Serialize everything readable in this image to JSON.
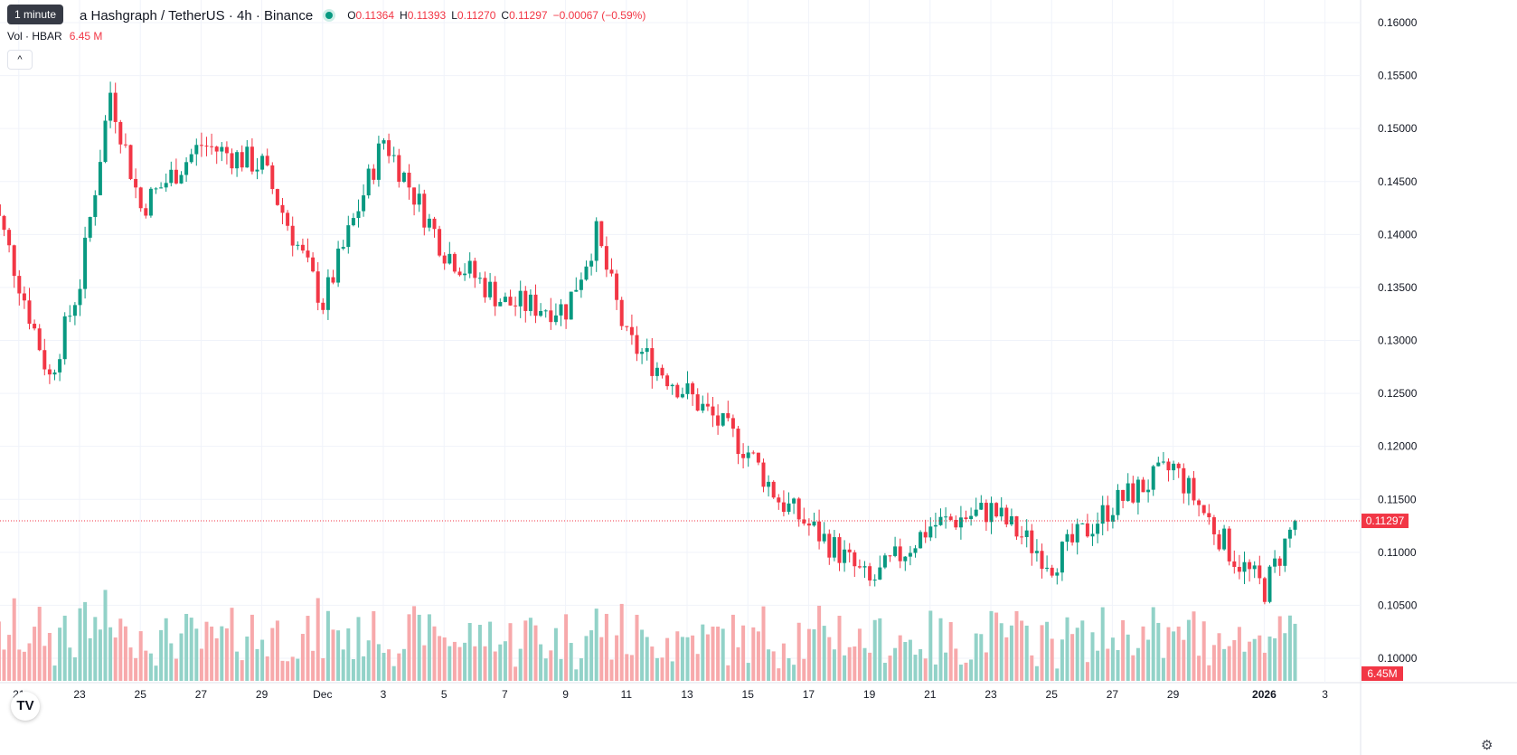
{
  "header": {
    "symbol": "a Hashgraph / TetherUS · 4h · Binance",
    "open_label": "O",
    "open": "0.11364",
    "high_label": "H",
    "high": "0.11393",
    "low_label": "L",
    "low": "0.11270",
    "close_label": "C",
    "close": "0.11297",
    "change": "−0.00067 (−0.59%)"
  },
  "tooltip": "1 minute",
  "volume_legend": {
    "label": "Vol · HBAR",
    "value": "6.45 M"
  },
  "collapse_glyph": "^",
  "logo": "TV",
  "settings_icon": "gear-icon",
  "colors": {
    "up": "#089981",
    "down": "#f23645",
    "vol_up": "#92d2c8",
    "vol_down": "#f7a9ab",
    "grid": "#f0f3fa"
  },
  "chart_data": {
    "type": "candlestick",
    "title": "a Hashgraph / TetherUS · 4h · Binance",
    "ylim": [
      0.0955,
      0.1625
    ],
    "y_ticks": [
      "0.16000",
      "0.15500",
      "0.15000",
      "0.14500",
      "0.14000",
      "0.13500",
      "0.13000",
      "0.12500",
      "0.12000",
      "0.11500",
      "0.11000",
      "0.10500",
      "0.10000"
    ],
    "x_ticks": [
      "21",
      "23",
      "25",
      "27",
      "29",
      "Dec",
      "3",
      "5",
      "7",
      "9",
      "11",
      "13",
      "15",
      "17",
      "19",
      "21",
      "23",
      "25",
      "27",
      "29",
      "2026",
      "3"
    ],
    "last_price": "0.11297",
    "last_volume": "6.45M",
    "grid": true,
    "key_points": [
      {
        "date": "Nov 20",
        "close": 0.1445
      },
      {
        "date": "Nov 22",
        "close": 0.1265
      },
      {
        "date": "Nov 23",
        "close": 0.1355
      },
      {
        "date": "Nov 24",
        "close": 0.1535
      },
      {
        "date": "Nov 25",
        "close": 0.1425
      },
      {
        "date": "Nov 27",
        "close": 0.1485
      },
      {
        "date": "Nov 29",
        "close": 0.1465
      },
      {
        "date": "Dec 1",
        "close": 0.1335
      },
      {
        "date": "Dec 3",
        "close": 0.149
      },
      {
        "date": "Dec 5",
        "close": 0.1385
      },
      {
        "date": "Dec 7",
        "close": 0.1335
      },
      {
        "date": "Dec 9",
        "close": 0.133
      },
      {
        "date": "Dec 10",
        "close": 0.14
      },
      {
        "date": "Dec 11",
        "close": 0.13
      },
      {
        "date": "Dec 13",
        "close": 0.125
      },
      {
        "date": "Dec 15",
        "close": 0.1195
      },
      {
        "date": "Dec 16",
        "close": 0.115
      },
      {
        "date": "Dec 18",
        "close": 0.11
      },
      {
        "date": "Dec 19",
        "close": 0.107
      },
      {
        "date": "Dec 21",
        "close": 0.1125
      },
      {
        "date": "Dec 23",
        "close": 0.114
      },
      {
        "date": "Dec 25",
        "close": 0.109
      },
      {
        "date": "Dec 27",
        "close": 0.1145
      },
      {
        "date": "Dec 29",
        "close": 0.118
      },
      {
        "date": "Dec 31",
        "close": 0.1095
      },
      {
        "date": "Jan 1",
        "close": 0.1065
      },
      {
        "date": "Jan 2",
        "close": 0.113
      }
    ]
  }
}
